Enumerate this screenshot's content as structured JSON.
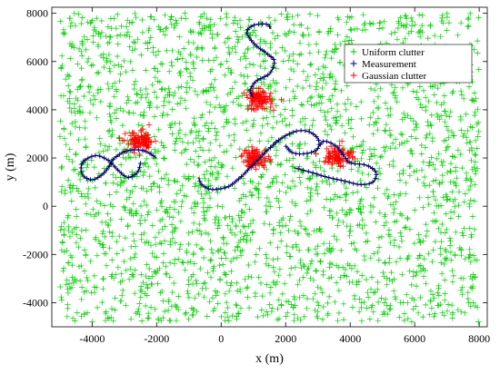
{
  "chart_data": {
    "type": "scatter",
    "title": "",
    "xlabel": "x (m)",
    "ylabel": "y (m)",
    "xlim": [
      -5250,
      8250
    ],
    "ylim": [
      -5000,
      8250
    ],
    "xticks": [
      -4000,
      -2000,
      0,
      2000,
      4000,
      6000,
      8000
    ],
    "yticks": [
      -4000,
      -2000,
      0,
      2000,
      4000,
      6000,
      8000
    ],
    "xtick_labels": [
      "-4000",
      "-2000",
      "0",
      "2000",
      "4000",
      "6000",
      "8000"
    ],
    "ytick_labels": [
      "-4000",
      "-2000",
      "0",
      "2000",
      "4000",
      "6000",
      "8000"
    ],
    "grid": false,
    "legend": {
      "placement": "top-right",
      "entries": [
        {
          "label": "Uniform clutter",
          "color": "#00cc00"
        },
        {
          "label": "Measurement",
          "color": "#000080"
        },
        {
          "label": "Gaussian clutter",
          "color": "#ff0000"
        }
      ]
    },
    "series": [
      {
        "name": "Uniform clutter",
        "color": "#00cc00",
        "marker": "+",
        "distribution": "uniform",
        "x_range": [
          -5000,
          8000
        ],
        "y_range": [
          -4800,
          8000
        ],
        "count": 2600
      },
      {
        "name": "Gaussian clutter",
        "color": "#ff0000",
        "marker": "+",
        "distribution": "gaussian",
        "clusters": [
          {
            "center": [
              -2500,
              2650
            ],
            "spread": 220,
            "count": 90
          },
          {
            "center": [
              1150,
              4400
            ],
            "spread": 200,
            "count": 90
          },
          {
            "center": [
              1050,
              2000
            ],
            "spread": 210,
            "count": 80
          },
          {
            "center": [
              3650,
              2100
            ],
            "spread": 230,
            "count": 80
          }
        ]
      },
      {
        "name": "Measurement",
        "color": "#000080",
        "marker": "+",
        "tracks": [
          {
            "points": [
              [
                -2000,
                2000
              ],
              [
                -2400,
                2300
              ],
              [
                -2900,
                2300
              ],
              [
                -3300,
                2000
              ],
              [
                -3500,
                1600
              ],
              [
                -3700,
                1300
              ],
              [
                -4000,
                1100
              ],
              [
                -4300,
                1300
              ],
              [
                -4300,
                1800
              ],
              [
                -3900,
                2100
              ],
              [
                -3500,
                1900
              ],
              [
                -3200,
                1500
              ],
              [
                -2900,
                1200
              ],
              [
                -2600,
                1400
              ],
              [
                -2500,
                1800
              ]
            ]
          },
          {
            "points": [
              [
                1000,
                4500
              ],
              [
                900,
                4800
              ],
              [
                1100,
                5200
              ],
              [
                1500,
                5500
              ],
              [
                1650,
                6000
              ],
              [
                1450,
                6300
              ],
              [
                1050,
                6700
              ],
              [
                800,
                7200
              ],
              [
                1000,
                7500
              ],
              [
                1400,
                7550
              ],
              [
                1550,
                7350
              ]
            ]
          },
          {
            "points": [
              [
                -700,
                1200
              ],
              [
                -600,
                900
              ],
              [
                -300,
                700
              ],
              [
                200,
                800
              ],
              [
                600,
                1200
              ],
              [
                900,
                1600
              ],
              [
                1200,
                2000
              ],
              [
                1500,
                2400
              ],
              [
                1850,
                2800
              ],
              [
                2300,
                3100
              ],
              [
                2700,
                3100
              ],
              [
                3000,
                2800
              ],
              [
                3000,
                2400
              ],
              [
                2700,
                2200
              ],
              [
                2250,
                2200
              ],
              [
                2000,
                2500
              ]
            ]
          },
          {
            "points": [
              [
                2250,
                1600
              ],
              [
                2800,
                1400
              ],
              [
                3300,
                1200
              ],
              [
                3800,
                1050
              ],
              [
                4300,
                900
              ],
              [
                4700,
                1000
              ],
              [
                4800,
                1400
              ],
              [
                4500,
                1700
              ],
              [
                4000,
                1800
              ],
              [
                3800,
                2100
              ],
              [
                3550,
                2500
              ],
              [
                3200,
                2700
              ],
              [
                3050,
                2500
              ]
            ]
          }
        ]
      }
    ]
  }
}
